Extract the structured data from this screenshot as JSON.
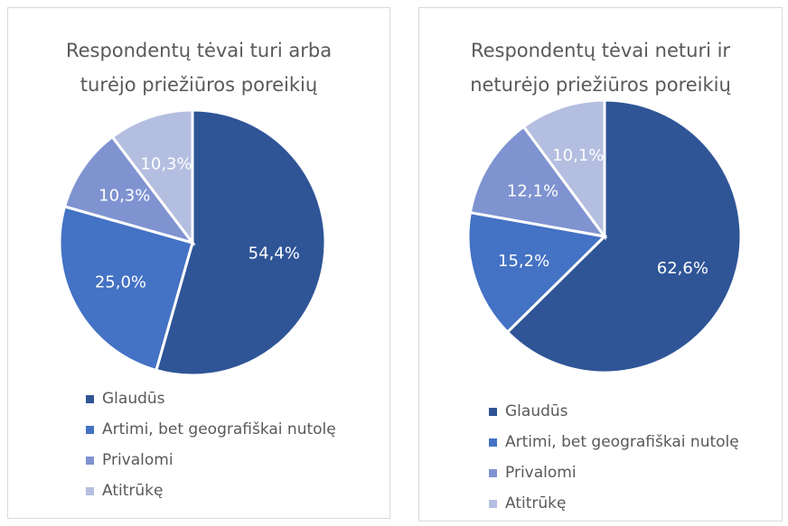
{
  "chart_data": [
    {
      "type": "pie",
      "title": "Respondentų tėvai turi arba turėjo priežiūros poreikių",
      "categories": [
        "Glaudūs",
        "Artimi, bet geografiškai nutolę",
        "Privalomi",
        "Atitrūkę"
      ],
      "values": [
        54.4,
        25.0,
        10.3,
        10.3
      ],
      "value_labels": [
        "54,4%",
        "25,0%",
        "10,3%",
        "10,3%"
      ],
      "colors": [
        "#2f5597",
        "#4472c4",
        "#7f93d1",
        "#b4bee0"
      ]
    },
    {
      "type": "pie",
      "title": "Respondentų tėvai neturi ir neturėjo priežiūros poreikių",
      "categories": [
        "Glaudūs",
        "Artimi, bet geografiškai nutolę",
        "Privalomi",
        "Atitrūkę"
      ],
      "values": [
        62.6,
        15.2,
        12.1,
        10.1
      ],
      "value_labels": [
        "62,6%",
        "15,2%",
        "12,1%",
        "10,1%"
      ],
      "colors": [
        "#2f5597",
        "#4472c4",
        "#7f93d1",
        "#b4bee0"
      ]
    }
  ]
}
